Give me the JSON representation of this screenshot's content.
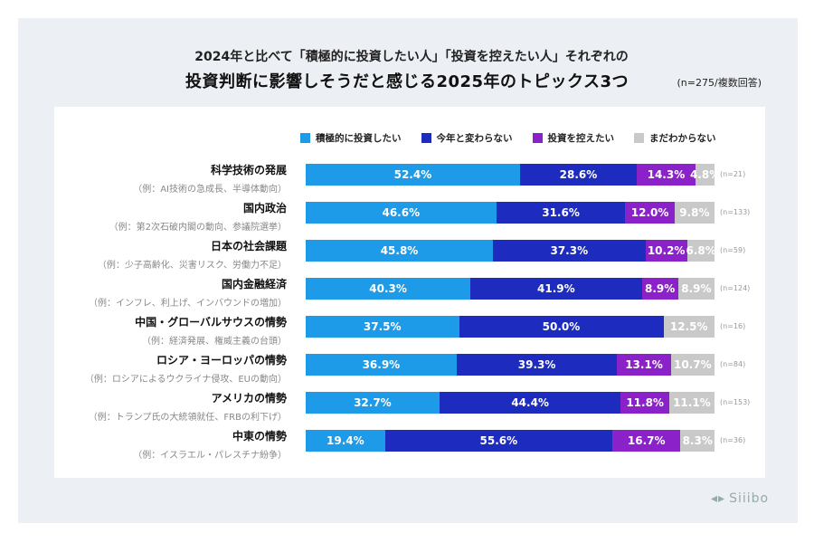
{
  "title_line1": "2024年と比べて「積極的に投資したい人」「投資を控えたい人」それぞれの",
  "title_line2": "投資判断に影響しそうだと感じる2025年のトピックス3つ",
  "note": "(n=275/複数回答)",
  "logo_text": "Siiibo",
  "chart_data": {
    "type": "bar",
    "orientation": "horizontal",
    "stacked": true,
    "xlim": [
      0,
      100
    ],
    "unit": "%",
    "legend_position": "top",
    "categories": [
      {
        "label": "科学技術の発展",
        "example": "（例：AI技術の急成長、半導体動向）",
        "n": "(n=21)"
      },
      {
        "label": "国内政治",
        "example": "（例：第2次石破内閣の動向、参議院選挙）",
        "n": "(n=133)"
      },
      {
        "label": "日本の社会課題",
        "example": "（例：少子高齢化、災害リスク、労働力不足）",
        "n": "(n=59)"
      },
      {
        "label": "国内金融経済",
        "example": "（例：インフレ、利上げ、インバウンドの増加）",
        "n": "(n=124)"
      },
      {
        "label": "中国・グローバルサウスの情勢",
        "example": "（例：経済発展、権威主義の台頭）",
        "n": "(n=16)"
      },
      {
        "label": "ロシア・ヨーロッパの情勢",
        "example": "（例：ロシアによるウクライナ侵攻、EUの動向）",
        "n": "(n=84)"
      },
      {
        "label": "アメリカの情勢",
        "example": "（例：トランプ氏の大統領就任、FRBの利下げ）",
        "n": "(n=153)"
      },
      {
        "label": "中東の情勢",
        "example": "（例：イスラエル・パレスチナ紛争）",
        "n": "(n=36)"
      }
    ],
    "series": [
      {
        "name": "積極的に投資したい",
        "color": "#1e9be8",
        "values": [
          52.4,
          46.6,
          45.8,
          40.3,
          37.5,
          36.9,
          32.7,
          19.4
        ]
      },
      {
        "name": "今年と変わらない",
        "color": "#1d2cbf",
        "values": [
          28.6,
          31.6,
          37.3,
          41.9,
          50.0,
          39.3,
          44.4,
          55.6
        ]
      },
      {
        "name": "投資を控えたい",
        "color": "#8b22c9",
        "values": [
          14.3,
          12.0,
          10.2,
          8.9,
          0,
          13.1,
          11.8,
          16.7
        ]
      },
      {
        "name": "まだわからない",
        "color": "#c9c9c9",
        "values": [
          4.8,
          9.8,
          6.8,
          8.9,
          12.5,
          10.7,
          11.1,
          8.3
        ]
      }
    ]
  }
}
